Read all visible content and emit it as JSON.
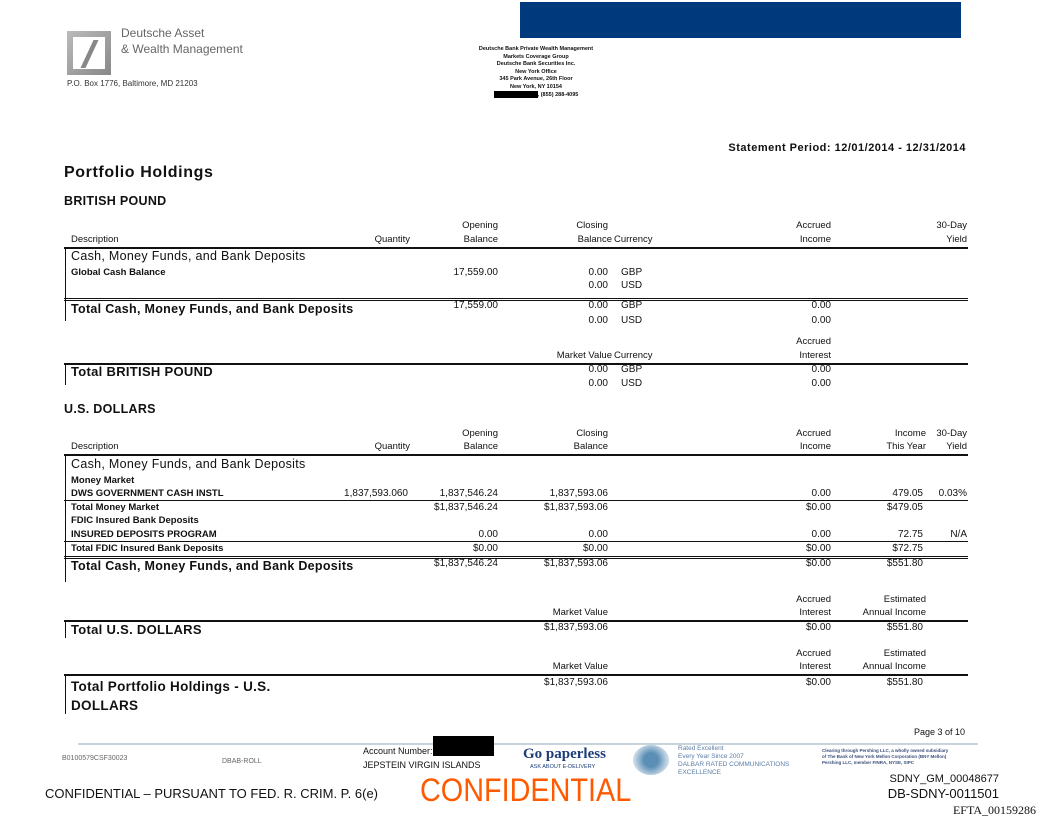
{
  "header": {
    "brand_line1": "Deutsche Asset",
    "brand_line2": "& Wealth Management",
    "po_box": "P.O. Box 1776, Baltimore, MD 21203",
    "office_lines": [
      "Deutsche Bank Private Wealth Management",
      "Markets Coverage Group",
      "Deutsche Bank Securities Inc.",
      "New York Office",
      "345 Park Avenue, 26th Floor",
      "New York, NY  10154",
      ", (855) 288-4095"
    ],
    "banner_color": "#003a7d",
    "statement_period": "Statement Period: 12/01/2014 - 12/31/2014"
  },
  "title": "Portfolio Holdings",
  "gbp": {
    "heading": "BRITISH POUND",
    "columns": {
      "description": "Description",
      "quantity": "Quantity",
      "opening1": "Opening",
      "opening2": "Balance",
      "closing1": "Closing",
      "closing2": "Balance",
      "currency": "Currency",
      "accrued1": "Accrued",
      "accrued2": "Income",
      "yield1": "30-Day",
      "yield2": "Yield"
    },
    "category": "Cash, Money Funds, and Bank Deposits",
    "row": {
      "description": "Global Cash Balance",
      "opening": "17,559.00",
      "closing": [
        "0.00",
        "0.00"
      ],
      "currency": [
        "GBP",
        "USD"
      ]
    },
    "total": {
      "label": "Total Cash, Money Funds, and Bank Deposits",
      "opening": "17,559.00",
      "closing": [
        "0.00",
        "0.00"
      ],
      "currency": [
        "GBP",
        "USD"
      ],
      "accrued": [
        "0.00",
        "0.00"
      ]
    },
    "summary_columns": {
      "accrued1": "Accrued",
      "accrued2": "Interest",
      "market_value": "Market Value",
      "currency": "Currency"
    },
    "grand": {
      "label": "Total BRITISH POUND",
      "market_value": [
        "0.00",
        "0.00"
      ],
      "currency": [
        "GBP",
        "USD"
      ],
      "accrued": [
        "0.00",
        "0.00"
      ]
    }
  },
  "usd": {
    "heading": "U.S. DOLLARS",
    "columns": {
      "description": "Description",
      "quantity": "Quantity",
      "opening1": "Opening",
      "opening2": "Balance",
      "closing1": "Closing",
      "closing2": "Balance",
      "accrued1": "Accrued",
      "accrued2": "Income",
      "income1": "Income",
      "income2": "This Year",
      "yield1": "30-Day",
      "yield2": "Yield"
    },
    "category": "Cash, Money Funds, and Bank Deposits",
    "sub1": "Money Market",
    "row1": {
      "description": "DWS GOVERNMENT CASH INSTL",
      "quantity": "1,837,593.060",
      "opening": "1,837,546.24",
      "closing": "1,837,593.06",
      "accrued": "0.00",
      "income": "479.05",
      "yield": "0.03%"
    },
    "total1": {
      "label": "Total Money Market",
      "opening": "$1,837,546.24",
      "closing": "$1,837,593.06",
      "accrued": "$0.00",
      "income": "$479.05"
    },
    "sub2": "FDIC Insured Bank Deposits",
    "row2": {
      "description": "INSURED DEPOSITS PROGRAM",
      "opening": "0.00",
      "closing": "0.00",
      "accrued": "0.00",
      "income": "72.75",
      "yield": "N/A"
    },
    "total2": {
      "label": "Total FDIC Insured Bank Deposits",
      "opening": "$0.00",
      "closing": "$0.00",
      "accrued": "$0.00",
      "income": "$72.75"
    },
    "total": {
      "label": "Total Cash, Money Funds, and Bank Deposits",
      "opening": "$1,837,546.24",
      "closing": "$1,837,593.06",
      "accrued": "$0.00",
      "income": "$551.80"
    },
    "summary_columns": {
      "accrued1": "Accrued",
      "accrued2": "Interest",
      "est1": "Estimated",
      "est2": "Annual Income",
      "market_value": "Market Value"
    },
    "grand": {
      "label": "Total U.S. DOLLARS",
      "market_value": "$1,837,593.06",
      "accrued": "$0.00",
      "income": "$551.80"
    }
  },
  "portfolio_total": {
    "label1": "Total Portfolio Holdings - U.S.",
    "label2": "DOLLARS",
    "market_value": "$1,837,593.06",
    "accrued": "$0.00",
    "income": "$551.80"
  },
  "footer": {
    "page": "Page 3 of 10",
    "code": "B0100579CSF30023",
    "roll": "DBAB-ROLL",
    "account_label": "Account Number:",
    "account_name": "JEPSTEIN VIRGIN ISLANDS",
    "paperless": "Go paperless",
    "paperless_sub": "ASK ABOUT E-DELIVERY",
    "dalbar": [
      "Rated Excellent",
      "Every Year Since 2007",
      "DALBAR RATED COMMUNICATIONS",
      "EXCELLENCE"
    ],
    "pershing": [
      "Clearing through Pershing LLC, a wholly owned subsidiary",
      "of The Bank of New York Mellon Corporation (BNY Mellon)",
      "Pershing LLC, member FINRA, NYSE, SIPC"
    ],
    "confidential_stamp": "CONFIDENTIAL",
    "confidential_note": "CONFIDENTIAL – PURSUANT TO FED. R. CRIM. P. 6(e)",
    "bates1": "SDNY_GM_00048677",
    "bates2": "DB-SDNY-0011501",
    "bates3": "EFTA_00159286",
    "stamp_color": "#ff5a00"
  }
}
